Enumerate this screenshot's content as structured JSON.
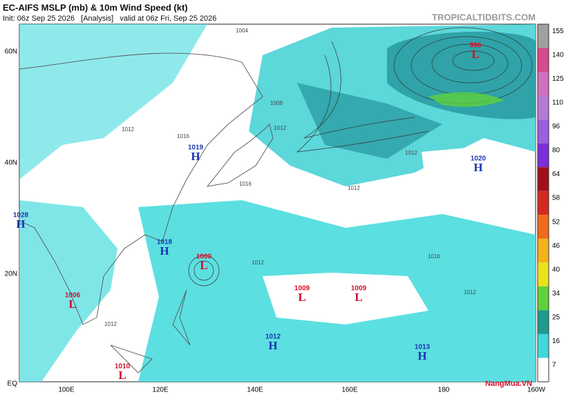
{
  "header": {
    "title": "EC-AIFS MSLP (mb) & 10m Wind Speed (kt)",
    "subtitle": "Init: 06z Sep 25 2026   [Analysis]   valid at 06z Fri, Sep 25 2026",
    "site": "TROPICALTIDBITS.COM"
  },
  "lat_labels": [
    "60N",
    "40N",
    "20N",
    "EQ"
  ],
  "lon_labels": [
    "100E",
    "120E",
    "140E",
    "160E",
    "180",
    "160W"
  ],
  "pressure_centers": [
    {
      "kind": "L",
      "value": 996,
      "color": "#d0102a"
    },
    {
      "kind": "H",
      "value": 1019,
      "color": "#1a36b0"
    },
    {
      "kind": "H",
      "value": 1020,
      "color": "#1a36b0"
    },
    {
      "kind": "H",
      "value": 1028,
      "color": "#1a36b0"
    },
    {
      "kind": "H",
      "value": 1018,
      "color": "#1a36b0"
    },
    {
      "kind": "L",
      "value": 1000,
      "color": "#d0102a"
    },
    {
      "kind": "L",
      "value": 1006,
      "color": "#d0102a"
    },
    {
      "kind": "L",
      "value": 1009,
      "color": "#d0102a"
    },
    {
      "kind": "L",
      "value": 1009,
      "color": "#d0102a"
    },
    {
      "kind": "H",
      "value": 1012,
      "color": "#1a36b0"
    },
    {
      "kind": "H",
      "value": 1013,
      "color": "#1a36b0"
    },
    {
      "kind": "L",
      "value": 1010,
      "color": "#d0102a"
    }
  ],
  "isobar_labels": [
    1004,
    1008,
    1012,
    1016,
    1016,
    1012,
    1012,
    1012,
    1016,
    1012,
    1012,
    1012
  ],
  "colorbar": {
    "ticks": [
      155,
      140,
      125,
      110,
      96,
      80,
      64,
      58,
      52,
      46,
      40,
      34,
      25,
      16,
      7
    ],
    "colors": [
      "#a0a0a0",
      "#d64a8e",
      "#cf6fbe",
      "#b57ad6",
      "#9b5fe0",
      "#7a2fd8",
      "#a0101a",
      "#d22a1e",
      "#ef6a1a",
      "#f5b21a",
      "#e9e31c",
      "#5fd13a",
      "#1f9a8e",
      "#3fd9dc",
      "#ffffff"
    ]
  },
  "watermark": "NangMua.VN"
}
